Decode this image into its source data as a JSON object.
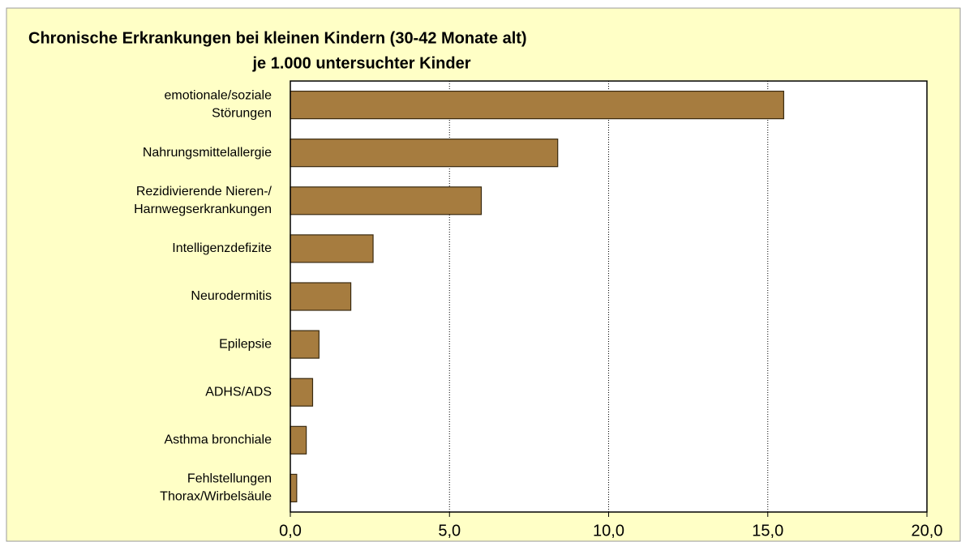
{
  "chart_data": {
    "type": "bar",
    "orientation": "horizontal",
    "title": "Chronische Erkrankungen bei kleinen Kindern (30-42 Monate alt)",
    "subtitle": "je 1.000 untersuchter Kinder",
    "categories": [
      "emotionale/soziale\nStörungen",
      "Nahrungsmittelallergie",
      "Rezidivierende Nieren-/\nHarnwegserkrankungen",
      "Intelligenzdefizite",
      "Neurodermitis",
      "Epilepsie",
      "ADHS/ADS",
      "Asthma bronchiale",
      "Fehlstellungen\nThorax/Wirbelsäule"
    ],
    "values": [
      15.5,
      8.4,
      6.0,
      2.6,
      1.9,
      0.9,
      0.7,
      0.5,
      0.2
    ],
    "color": "#a67c3f",
    "xlim": [
      0,
      20
    ],
    "xticks": [
      {
        "value": 0,
        "label": "0,0"
      },
      {
        "value": 5,
        "label": "5,0"
      },
      {
        "value": 10,
        "label": "10,0"
      },
      {
        "value": 15,
        "label": "15,0"
      },
      {
        "value": 20,
        "label": "20,0"
      }
    ],
    "grid": true
  }
}
